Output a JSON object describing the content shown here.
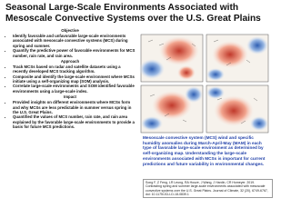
{
  "header": {
    "title": "Seasonal Large-Scale Environments Associated with Mesoscale Convective Systems over the U.S. Great Plains"
  },
  "sections": [
    {
      "heading": "Objective",
      "items": [
        "Identify favorable and unfavorable large-scale environments associated with mesoscale convective systems (MCS) during spring and summer.",
        "Quantify the predictive power of favorable environments for MCS number, rain rate, and rain area."
      ]
    },
    {
      "heading": "Approach",
      "items": [
        "Track MCSs based on radar and satellite datasets using a recently developed MCS tracking algorithm.",
        "Composite and identify the large-scale environment where MCSs initiate using a self-organizing map (SOM) analysis.",
        "Correlate large-scale environments and SOM identified favorable environments using a large-scale index."
      ]
    },
    {
      "heading": "Impact",
      "items": [
        "Provided insights on different environments where MCSs form and why MCSs are less predictable in summer versus spring in the U.S. Great Plains.",
        "Quantified the values of MCS number, rain rate, and rain area explained by the favorable large-scale environments to provide a basis for future MCS predictions."
      ]
    }
  ],
  "caption": "Mesoscale convective system (MCS) wind and specific humidity anomalies during March-April-May (MAM) in each type of favorable large-scale environment as determined by self-organizing map. Understanding the large-scale environments associated with MCSs is important for current predictions and future variability in environmental changes.",
  "reference": "Song F, Z Feng, LR Leung, RA Houze, J Wang, J Hardin, CR Homeyer. 2019. Contrasting spring and summer large-scale environments associated with mesoscale convective systems over the U.S. Great Plains. Journal of Climate, 32 (20), 6749-6767, doi: 10.1175/JCLI-D-18-0839.1"
}
